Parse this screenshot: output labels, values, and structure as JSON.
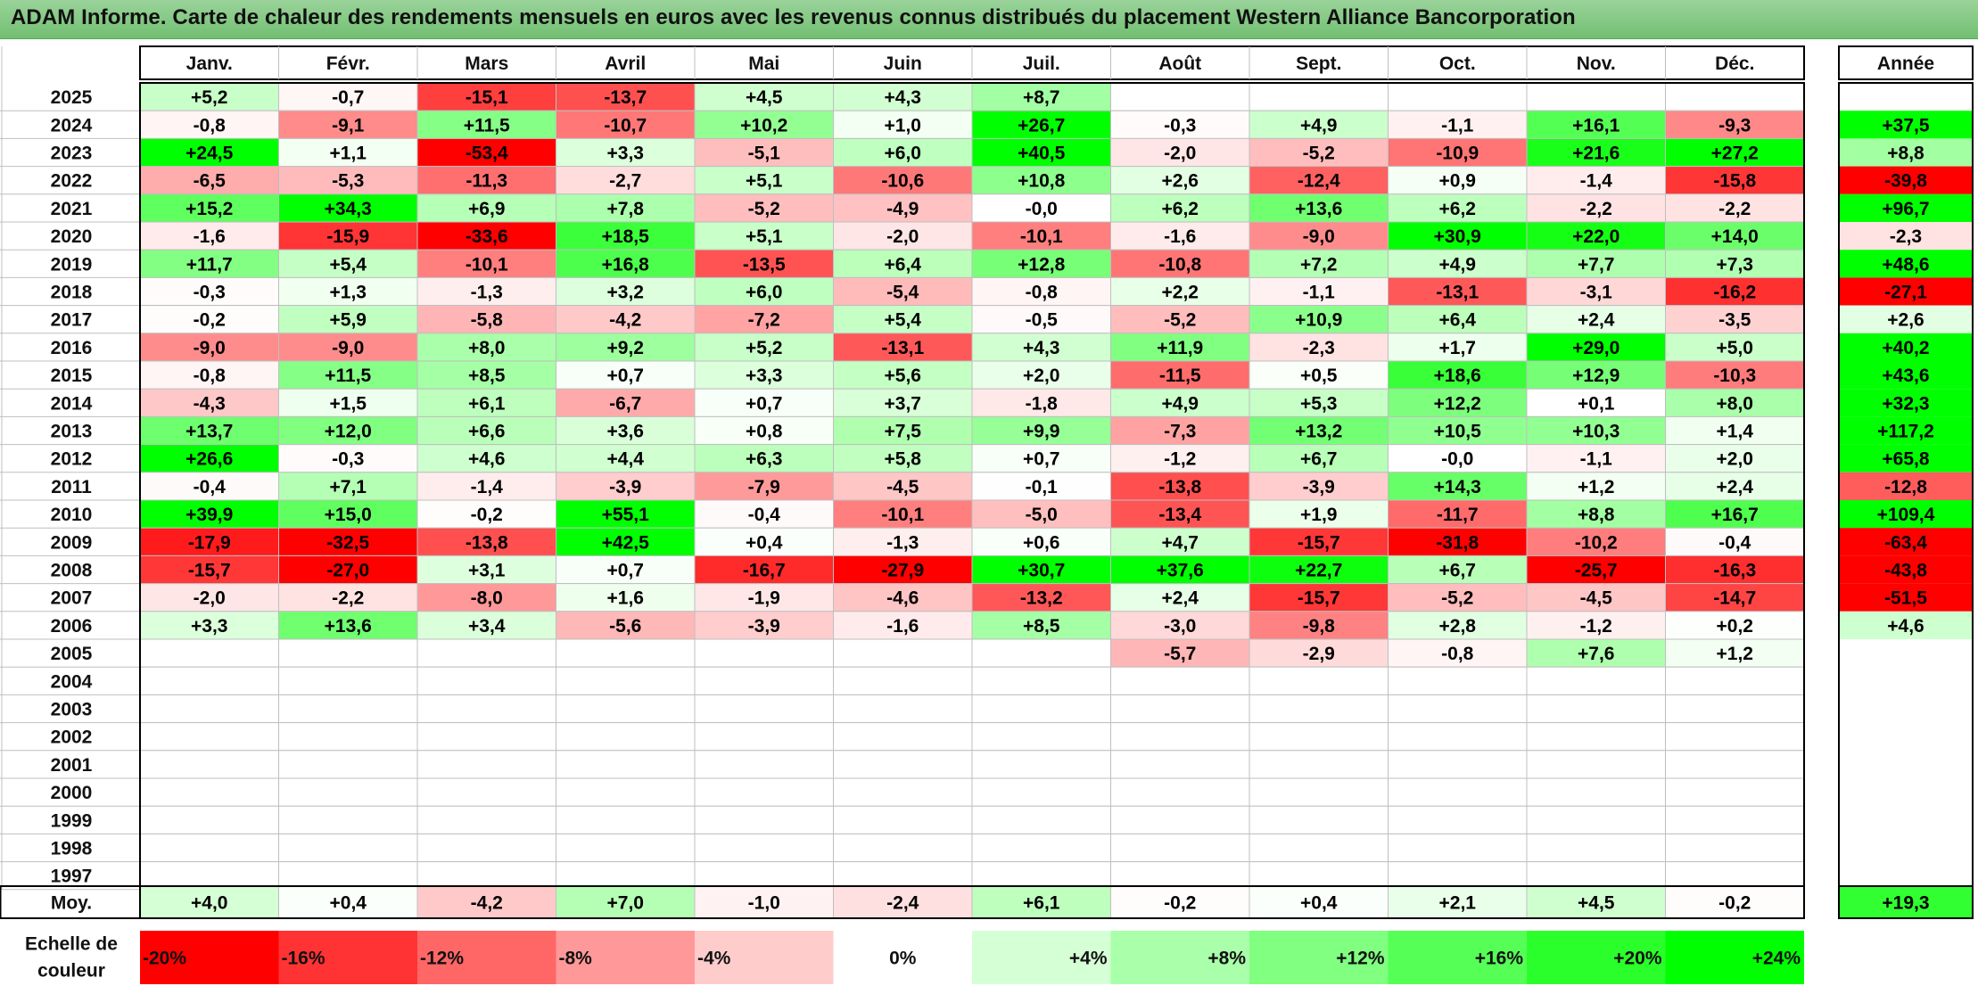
{
  "title": "ADAM Informe. Carte de chaleur des rendements mensuels en euros avec les revenus connus distribués du placement Western Alliance Bancorporation",
  "chart_data": {
    "type": "heatmap",
    "months": [
      "Janv.",
      "Févr.",
      "Mars",
      "Avril",
      "Mai",
      "Juin",
      "Juil.",
      "Août",
      "Sept.",
      "Oct.",
      "Nov.",
      "Déc."
    ],
    "annual_header": "Année",
    "years": [
      "2025",
      "2024",
      "2023",
      "2022",
      "2021",
      "2020",
      "2019",
      "2018",
      "2017",
      "2016",
      "2015",
      "2014",
      "2013",
      "2012",
      "2011",
      "2010",
      "2009",
      "2008",
      "2007",
      "2006",
      "2005",
      "2004",
      "2003",
      "2002",
      "2001",
      "2000",
      "1999",
      "1998",
      "1997"
    ],
    "values": [
      [
        "+5,2",
        "-0,7",
        "-15,1",
        "-13,7",
        "+4,5",
        "+4,3",
        "+8,7",
        "",
        "",
        "",
        "",
        ""
      ],
      [
        "-0,8",
        "-9,1",
        "+11,5",
        "-10,7",
        "+10,2",
        "+1,0",
        "+26,7",
        "-0,3",
        "+4,9",
        "-1,1",
        "+16,1",
        "-9,3"
      ],
      [
        "+24,5",
        "+1,1",
        "-53,4",
        "+3,3",
        "-5,1",
        "+6,0",
        "+40,5",
        "-2,0",
        "-5,2",
        "-10,9",
        "+21,6",
        "+27,2"
      ],
      [
        "-6,5",
        "-5,3",
        "-11,3",
        "-2,7",
        "+5,1",
        "-10,6",
        "+10,8",
        "+2,6",
        "-12,4",
        "+0,9",
        "-1,4",
        "-15,8"
      ],
      [
        "+15,2",
        "+34,3",
        "+6,9",
        "+7,8",
        "-5,2",
        "-4,9",
        "-0,0",
        "+6,2",
        "+13,6",
        "+6,2",
        "-2,2",
        "-2,2"
      ],
      [
        "-1,6",
        "-15,9",
        "-33,6",
        "+18,5",
        "+5,1",
        "-2,0",
        "-10,1",
        "-1,6",
        "-9,0",
        "+30,9",
        "+22,0",
        "+14,0"
      ],
      [
        "+11,7",
        "+5,4",
        "-10,1",
        "+16,8",
        "-13,5",
        "+6,4",
        "+12,8",
        "-10,8",
        "+7,2",
        "+4,9",
        "+7,7",
        "+7,3"
      ],
      [
        "-0,3",
        "+1,3",
        "-1,3",
        "+3,2",
        "+6,0",
        "-5,4",
        "-0,8",
        "+2,2",
        "-1,1",
        "-13,1",
        "-3,1",
        "-16,2"
      ],
      [
        "-0,2",
        "+5,9",
        "-5,8",
        "-4,2",
        "-7,2",
        "+5,4",
        "-0,5",
        "-5,2",
        "+10,9",
        "+6,4",
        "+2,4",
        "-3,5"
      ],
      [
        "-9,0",
        "-9,0",
        "+8,0",
        "+9,2",
        "+5,2",
        "-13,1",
        "+4,3",
        "+11,9",
        "-2,3",
        "+1,7",
        "+29,0",
        "+5,0"
      ],
      [
        "-0,8",
        "+11,5",
        "+8,5",
        "+0,7",
        "+3,3",
        "+5,6",
        "+2,0",
        "-11,5",
        "+0,5",
        "+18,6",
        "+12,9",
        "-10,3"
      ],
      [
        "-4,3",
        "+1,5",
        "+6,1",
        "-6,7",
        "+0,7",
        "+3,7",
        "-1,8",
        "+4,9",
        "+5,3",
        "+12,2",
        "+0,1",
        "+8,0"
      ],
      [
        "+13,7",
        "+12,0",
        "+6,6",
        "+3,6",
        "+0,8",
        "+7,5",
        "+9,9",
        "-7,3",
        "+13,2",
        "+10,5",
        "+10,3",
        "+1,4"
      ],
      [
        "+26,6",
        "-0,3",
        "+4,6",
        "+4,4",
        "+6,3",
        "+5,8",
        "+0,7",
        "-1,2",
        "+6,7",
        "-0,0",
        "-1,1",
        "+2,0"
      ],
      [
        "-0,4",
        "+7,1",
        "-1,4",
        "-3,9",
        "-7,9",
        "-4,5",
        "-0,1",
        "-13,8",
        "-3,9",
        "+14,3",
        "+1,2",
        "+2,4"
      ],
      [
        "+39,9",
        "+15,0",
        "-0,2",
        "+55,1",
        "-0,4",
        "-10,1",
        "-5,0",
        "-13,4",
        "+1,9",
        "-11,7",
        "+8,8",
        "+16,7"
      ],
      [
        "-17,9",
        "-32,5",
        "-13,8",
        "+42,5",
        "+0,4",
        "-1,3",
        "+0,6",
        "+4,7",
        "-15,7",
        "-31,8",
        "-10,2",
        "-0,4"
      ],
      [
        "-15,7",
        "-27,0",
        "+3,1",
        "+0,7",
        "-16,7",
        "-27,9",
        "+30,7",
        "+37,6",
        "+22,7",
        "+6,7",
        "-25,7",
        "-16,3"
      ],
      [
        "-2,0",
        "-2,2",
        "-8,0",
        "+1,6",
        "-1,9",
        "-4,6",
        "-13,2",
        "+2,4",
        "-15,7",
        "-5,2",
        "-4,5",
        "-14,7"
      ],
      [
        "+3,3",
        "+13,6",
        "+3,4",
        "-5,6",
        "-3,9",
        "-1,6",
        "+8,5",
        "-3,0",
        "-9,8",
        "+2,8",
        "-1,2",
        "+0,2"
      ],
      [
        "",
        "",
        "",
        "",
        "",
        "",
        "",
        "-5,7",
        "-2,9",
        "-0,8",
        "+7,6",
        "+1,2"
      ],
      [
        "",
        "",
        "",
        "",
        "",
        "",
        "",
        "",
        "",
        "",
        "",
        ""
      ],
      [
        "",
        "",
        "",
        "",
        "",
        "",
        "",
        "",
        "",
        "",
        "",
        ""
      ],
      [
        "",
        "",
        "",
        "",
        "",
        "",
        "",
        "",
        "",
        "",
        "",
        ""
      ],
      [
        "",
        "",
        "",
        "",
        "",
        "",
        "",
        "",
        "",
        "",
        "",
        ""
      ],
      [
        "",
        "",
        "",
        "",
        "",
        "",
        "",
        "",
        "",
        "",
        "",
        ""
      ],
      [
        "",
        "",
        "",
        "",
        "",
        "",
        "",
        "",
        "",
        "",
        "",
        ""
      ],
      [
        "",
        "",
        "",
        "",
        "",
        "",
        "",
        "",
        "",
        "",
        "",
        ""
      ],
      [
        "",
        "",
        "",
        "",
        "",
        "",
        "",
        "",
        "",
        "",
        "",
        ""
      ]
    ],
    "annual": [
      "",
      "+37,5",
      "+8,8",
      "-39,8",
      "+96,7",
      "-2,3",
      "+48,6",
      "-27,1",
      "+2,6",
      "+40,2",
      "+43,6",
      "+32,3",
      "+117,2",
      "+65,8",
      "-12,8",
      "+109,4",
      "-63,4",
      "-43,8",
      "-51,5",
      "+4,6",
      "",
      "",
      "",
      "",
      "",
      "",
      "",
      "",
      ""
    ],
    "average_label": "Moy.",
    "averages": [
      "+4,0",
      "+0,4",
      "-4,2",
      "+7,0",
      "-1,0",
      "-2,4",
      "+6,1",
      "-0,2",
      "+0,4",
      "+2,1",
      "+4,5",
      "-0,2"
    ],
    "average_annual": "+19,3",
    "scale_label": [
      "Echelle de",
      "couleur"
    ],
    "scale": [
      {
        "label": "-20%",
        "value": -20
      },
      {
        "label": "-16%",
        "value": -16
      },
      {
        "label": "-12%",
        "value": -12
      },
      {
        "label": "-8%",
        "value": -8
      },
      {
        "label": "-4%",
        "value": -4
      },
      {
        "label": "0%",
        "value": 0
      },
      {
        "label": "+4%",
        "value": 4
      },
      {
        "label": "+8%",
        "value": 8
      },
      {
        "label": "+12%",
        "value": 12
      },
      {
        "label": "+16%",
        "value": 16
      },
      {
        "label": "+20%",
        "value": 20
      },
      {
        "label": "+24%",
        "value": 24
      }
    ],
    "colors": {
      "negative_max": "#ff0000",
      "neutral": "#ffffff",
      "positive_max": "#00ff00",
      "title_bar": "#80c880",
      "grid": "#bfbfbf",
      "border": "#000000"
    }
  }
}
